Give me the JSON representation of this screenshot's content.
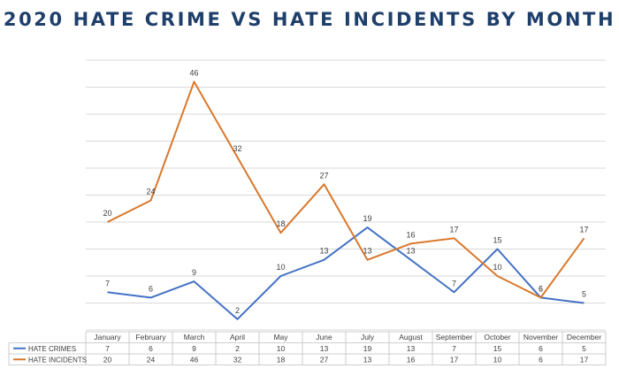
{
  "chart_data": {
    "type": "line",
    "title": "2020 HATE CRIME VS HATE INCIDENTS BY MONTH",
    "categories": [
      "January",
      "February",
      "March",
      "April",
      "May",
      "June",
      "July",
      "August",
      "September",
      "October",
      "November",
      "December"
    ],
    "series": [
      {
        "name": "HATE CRIMES",
        "color": "#4472c4",
        "values": [
          7,
          6,
          9,
          2,
          10,
          13,
          19,
          13,
          7,
          15,
          6,
          5
        ]
      },
      {
        "name": "HATE INCIDENTS",
        "color": "#d9782d",
        "values": [
          20,
          24,
          46,
          32,
          18,
          27,
          13,
          16,
          17,
          10,
          6,
          17
        ]
      }
    ],
    "ylim": [
      0,
      50
    ],
    "gridlines": true,
    "data_labels": true,
    "legend_placement": "data-table-left"
  }
}
